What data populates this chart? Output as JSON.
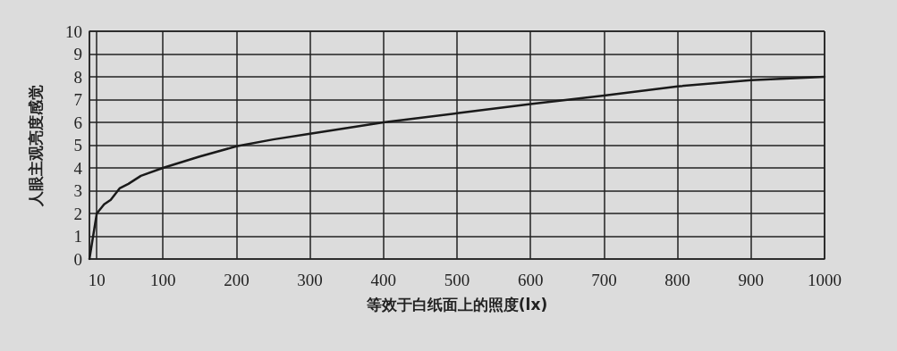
{
  "chart_data": {
    "type": "line",
    "xlabel": "等效于白纸面上的照度(lx)",
    "ylabel": "人眼主观亮度感觉",
    "x": [
      0,
      10,
      20,
      29,
      41,
      53,
      70,
      100,
      150,
      200,
      250,
      300,
      400,
      500,
      600,
      700,
      800,
      900,
      1000
    ],
    "series": [
      {
        "color": "#1a1a1a",
        "values": [
          0,
          2,
          2.4,
          2.6,
          3.1,
          3.3,
          3.65,
          4,
          4.5,
          4.95,
          5.25,
          5.5,
          6,
          6.4,
          6.8,
          7.18,
          7.58,
          7.85,
          8
        ]
      }
    ],
    "xlim": [
      0,
      1000
    ],
    "xticks": [
      {
        "value": 0,
        "label": null
      },
      10,
      100,
      200,
      300,
      400,
      500,
      600,
      700,
      800,
      900,
      1000
    ],
    "ylim": [
      0,
      10
    ],
    "yticks": [
      0,
      1,
      2,
      3,
      4,
      5,
      6,
      7,
      8,
      9,
      10
    ],
    "grid": true,
    "marker": "none",
    "line_style": "solid"
  }
}
